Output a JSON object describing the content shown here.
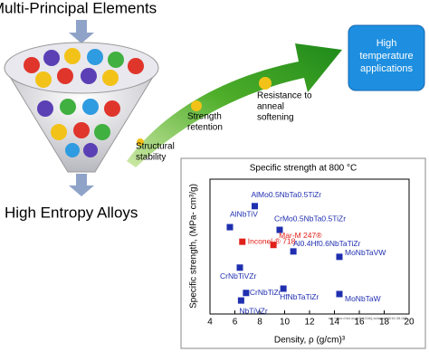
{
  "diagram": {
    "top_label": "Multi-Principal Elements",
    "bottom_label": "High Entropy Alloys",
    "stage1": [
      "Structural",
      "stability"
    ],
    "stage2": [
      "Strength",
      "retention"
    ],
    "stage3": [
      "Resistance to",
      "anneal",
      "softening"
    ],
    "goal": [
      "High",
      "temperature",
      "applications"
    ]
  },
  "chart_data": {
    "type": "scatter",
    "title": "Specific strength at 800 °C",
    "x_label": "Density, ρ (g/cm)³",
    "y_label": "Specific strength, (MPa- cm³/g)",
    "note": "ref: https://doi.org/10.1016/j.actamat.2016.08.081",
    "labels": [
      "AlMo0.5NbTa0.5TiZr",
      "AlNbTiV",
      "CrMo0.5NbTa0.5TiZr",
      "Inconel ® 718",
      "Mar-M 247®",
      "CrNbTiVZr",
      "Al0.4Hf0.6NbTaTiZr",
      "MoNbTaVW",
      "HfNbTaTiZr",
      "MoNbTaW",
      "CrNbTiZr",
      "NbTiVZr"
    ],
    "x": [
      7.6,
      5.6,
      9.6,
      6.6,
      9.1,
      6.4,
      10.7,
      14.4,
      9.9,
      14.4,
      6.9,
      6.5
    ],
    "values": [
      200,
      161,
      156,
      134,
      128,
      86,
      116,
      106,
      47,
      37,
      39,
      25
    ],
    "colors": [
      "#1f2fb0",
      "#1f2fb0",
      "#1f2fb0",
      "#e0201a",
      "#e0201a",
      "#1f2fb0",
      "#1f2fb0",
      "#1f2fb0",
      "#1f2fb0",
      "#1f2fb0",
      "#1f2fb0",
      "#1f2fb0"
    ],
    "xlim": [
      4,
      20
    ],
    "xticks": [
      4,
      6,
      8,
      10,
      12,
      14,
      16,
      18,
      20
    ],
    "ylim": [
      0,
      250
    ]
  }
}
